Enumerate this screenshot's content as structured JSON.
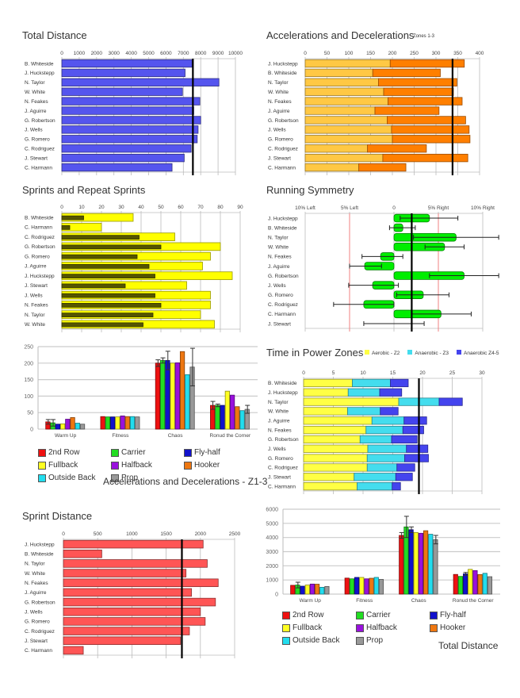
{
  "chart_data": [
    {
      "id": "total_distance",
      "type": "bar",
      "orientation": "horizontal",
      "title": "Total Distance",
      "categories": [
        "B. Whiteside",
        "J. Huckstepp",
        "N. Taylor",
        "W. White",
        "N. Feakes",
        "J. Aguirre",
        "G. Robertson",
        "J. Wells",
        "G. Romero",
        "C. Rodriguez",
        "J. Stewart",
        "C. Harmann"
      ],
      "values": [
        7500,
        7100,
        9050,
        6950,
        7950,
        7600,
        8000,
        7850,
        7800,
        7450,
        7050,
        6350
      ],
      "xlim": [
        0,
        10000
      ],
      "xticks": [
        "0",
        "1000",
        "2000",
        "3000",
        "4000",
        "5000",
        "6000",
        "7000",
        "8000",
        "9000",
        "10000"
      ],
      "reference_line": 7550,
      "color": "#5555ee",
      "grid": true
    },
    {
      "id": "accel_decel",
      "type": "bar",
      "orientation": "horizontal",
      "stacked": true,
      "title": "Accelerations and Decelerations",
      "subtitle": "Zones 1-3",
      "categories": [
        "J. Huckstepp",
        "B. Whiteside",
        "N. Taylor",
        "W. White",
        "N. Feakes",
        "J. Aguirre",
        "G. Robertson",
        "J. Wells",
        "G. Romero",
        "C. Rodriguez",
        "J. Stewart",
        "C. Harmann"
      ],
      "series": [
        {
          "name": "Accelerations",
          "color": "#ffc844",
          "values": [
            195,
            155,
            168,
            180,
            190,
            160,
            188,
            198,
            200,
            143,
            178,
            123
          ]
        },
        {
          "name": "Decelerations",
          "color": "#ff7f00",
          "values": [
            170,
            155,
            180,
            160,
            170,
            147,
            180,
            178,
            178,
            135,
            195,
            108
          ]
        }
      ],
      "xlim": [
        0,
        400
      ],
      "xticks": [
        "0",
        "50",
        "100",
        "150",
        "200",
        "250",
        "300",
        "350",
        "400"
      ],
      "reference_line": 338,
      "grid": true
    },
    {
      "id": "sprints",
      "type": "bar",
      "orientation": "horizontal",
      "title": "Sprints and Repeat Sprints",
      "categories": [
        "B. Whiteside",
        "C. Harmann",
        "C. Rodriguez",
        "G. Robertson",
        "G. Romero",
        "J. Aguirre",
        "J. Huckstepp",
        "J. Stewart",
        "J. Wells",
        "N. Feakes",
        "N. Taylor",
        "W. White"
      ],
      "series": [
        {
          "name": "Sprints",
          "color": "#ffff00",
          "values": [
            36,
            20,
            57,
            80,
            75,
            71,
            86,
            63,
            75,
            75,
            70,
            77
          ]
        },
        {
          "name": "Repeat Sprints",
          "color": "#555500",
          "values": [
            11,
            4,
            39,
            50,
            38,
            44,
            47,
            32,
            47,
            50,
            46,
            41
          ]
        }
      ],
      "xlim": [
        0,
        90
      ],
      "xticks": [
        "0",
        "10",
        "20",
        "30",
        "40",
        "50",
        "60",
        "70",
        "80",
        "90"
      ],
      "grid": true
    },
    {
      "id": "running_symmetry",
      "type": "bar",
      "orientation": "horizontal",
      "title": "Running Symmetry",
      "categories": [
        "J. Huckstepp",
        "B. Whiteside",
        "N. Taylor",
        "W. White",
        "N. Feakes",
        "J. Aguirre",
        "G. Robertson",
        "J. Wells",
        "G. Romero",
        "C. Rodriguez",
        "C. Harmann",
        "J. Stewart"
      ],
      "values": [
        4.0,
        1.0,
        7.0,
        5.7,
        -1.5,
        -3.3,
        7.9,
        -2.4,
        3.3,
        -3.4,
        5.3,
        0.0
      ],
      "error_low": [
        0.7,
        -0.5,
        2.2,
        3.5,
        -3.6,
        -5.0,
        4.0,
        -5.1,
        0.3,
        -6.8,
        2.0,
        -3.4
      ],
      "error_high": [
        7.2,
        2.4,
        11.8,
        7.9,
        1.0,
        -1.4,
        11.8,
        0.5,
        6.2,
        0.0,
        8.7,
        3.4
      ],
      "xlim": [
        -10,
        10
      ],
      "xticks": [
        "10% Left",
        "5% Left",
        "0",
        "5% Right",
        "10% Right"
      ],
      "threshold_lines": [
        -5,
        5
      ],
      "reference_line": 2.0,
      "color": "#00ee00",
      "grid": true
    },
    {
      "id": "accel_by_position",
      "type": "bar",
      "title": "Accelerations and Decelerations - Z1-3",
      "categories": [
        "Warm Up",
        "Fitness",
        "Chaos",
        "Ronud the Corner"
      ],
      "series": [
        {
          "name": "2nd Row",
          "color": "#ee1111",
          "values": [
            22,
            38,
            200,
            72
          ],
          "err": [
            7,
            0,
            10,
            12
          ]
        },
        {
          "name": "Carrier",
          "color": "#22dd22",
          "values": [
            19,
            37,
            208,
            72
          ],
          "err": [
            10,
            0,
            8,
            4
          ]
        },
        {
          "name": "Fly-half",
          "color": "#1111cc",
          "values": [
            15,
            37,
            208,
            72
          ],
          "err": [
            0,
            0,
            28,
            0
          ]
        },
        {
          "name": "Fullback",
          "color": "#ffff22",
          "values": [
            16,
            37,
            200,
            115
          ],
          "err": [
            0,
            0,
            0,
            0
          ]
        },
        {
          "name": "Halfback",
          "color": "#9911dd",
          "values": [
            30,
            40,
            201,
            103
          ],
          "err": [
            0,
            0,
            0,
            0
          ]
        },
        {
          "name": "Hooker",
          "color": "#ee7711",
          "values": [
            35,
            38,
            235,
            68
          ],
          "err": [
            0,
            0,
            0,
            0
          ]
        },
        {
          "name": "Outside Back",
          "color": "#22ddee",
          "values": [
            18,
            38,
            165,
            56
          ],
          "err": [
            0,
            0,
            0,
            0
          ]
        },
        {
          "name": "Prop",
          "color": "#999999",
          "values": [
            15,
            37,
            188,
            60
          ],
          "err": [
            0,
            0,
            57,
            12
          ]
        }
      ],
      "ylim": [
        0,
        250
      ],
      "yticks": [
        "0",
        "50",
        "100",
        "150",
        "200",
        "250"
      ],
      "legend": "bottom",
      "grid": true
    },
    {
      "id": "power_zones",
      "type": "bar",
      "orientation": "horizontal",
      "stacked": true,
      "title": "Time in Power Zones",
      "categories": [
        "B. Whiteside",
        "J. Huckstepp",
        "N. Taylor",
        "W. White",
        "J. Aguirre",
        "N. Feakes",
        "G. Robertson",
        "J. Wells",
        "G. Romero",
        "C. Rodriguez",
        "J. Stewart",
        "C. Harmann"
      ],
      "series": [
        {
          "name": "Aerobic - Z2",
          "color": "#ffff44",
          "values": [
            8.2,
            7.5,
            16.0,
            7.4,
            11.5,
            10.5,
            9.5,
            10.8,
            10.7,
            10.7,
            8.5,
            9.0
          ]
        },
        {
          "name": "Anaerobic - Z3",
          "color": "#44ddee",
          "values": [
            6.4,
            5.3,
            6.8,
            5.5,
            5.4,
            6.2,
            5.3,
            6.5,
            6.3,
            5.0,
            7.0,
            5.9
          ]
        },
        {
          "name": "Anaerobic Z4-5",
          "color": "#4444ee",
          "values": [
            3.0,
            3.7,
            3.9,
            3.0,
            3.8,
            3.5,
            4.3,
            3.6,
            4.0,
            3.0,
            2.8,
            1.4
          ]
        }
      ],
      "xlim": [
        0,
        30
      ],
      "xticks": [
        "0",
        "5",
        "10",
        "15",
        "20",
        "25",
        "30"
      ],
      "reference_line": 19.4,
      "legend": "top",
      "grid": true
    },
    {
      "id": "sprint_distance",
      "type": "bar",
      "orientation": "horizontal",
      "title": "Sprint Distance",
      "categories": [
        "J. Huckstepp",
        "B. Whiteside",
        "N. Taylor",
        "W. White",
        "N. Feakes",
        "J. Aguirre",
        "G. Robertson",
        "J. Wells",
        "G. Romero",
        "C. Rodriguez",
        "J. Stewart",
        "C. Harmann"
      ],
      "values": [
        2040,
        560,
        2100,
        1790,
        2260,
        1870,
        2220,
        2000,
        2070,
        1840,
        1710,
        290
      ],
      "xlim": [
        0,
        2500
      ],
      "xticks": [
        "0",
        "500",
        "1000",
        "1500",
        "2000",
        "2500"
      ],
      "reference_line": 1730,
      "color": "#ff5555",
      "grid": true
    },
    {
      "id": "distance_by_position",
      "type": "bar",
      "title": "Total Distance",
      "categories": [
        "Warm Up",
        "Fitness",
        "Chaos",
        "Ronud the Corner"
      ],
      "series": [
        {
          "name": "2nd Row",
          "color": "#ee1111",
          "values": [
            620,
            1130,
            4150,
            1390
          ],
          "err": [
            0,
            0,
            200,
            0
          ]
        },
        {
          "name": "Carrier",
          "color": "#22dd22",
          "values": [
            640,
            1080,
            4750,
            1250
          ],
          "err": [
            200,
            0,
            750,
            0
          ]
        },
        {
          "name": "Fly-half",
          "color": "#1111cc",
          "values": [
            560,
            1180,
            4550,
            1430
          ],
          "err": [
            0,
            0,
            200,
            100
          ]
        },
        {
          "name": "Fullback",
          "color": "#ffff22",
          "values": [
            640,
            1180,
            4350,
            1750
          ],
          "err": [
            0,
            0,
            0,
            0
          ]
        },
        {
          "name": "Halfback",
          "color": "#9911dd",
          "values": [
            710,
            1080,
            4300,
            1660
          ],
          "err": [
            0,
            0,
            0,
            0
          ]
        },
        {
          "name": "Hooker",
          "color": "#ee7711",
          "values": [
            700,
            1120,
            4480,
            1380
          ],
          "err": [
            0,
            0,
            0,
            0
          ]
        },
        {
          "name": "Outside Back",
          "color": "#22ddee",
          "values": [
            480,
            1180,
            4230,
            1470
          ],
          "err": [
            0,
            0,
            0,
            0
          ]
        },
        {
          "name": "Prop",
          "color": "#999999",
          "values": [
            540,
            1040,
            3850,
            1230
          ],
          "err": [
            0,
            0,
            300,
            0
          ]
        }
      ],
      "ylim": [
        0,
        6000
      ],
      "yticks": [
        "0",
        "1000",
        "2000",
        "3000",
        "4000",
        "5000",
        "6000"
      ],
      "legend": "bottom",
      "grid": true
    }
  ]
}
